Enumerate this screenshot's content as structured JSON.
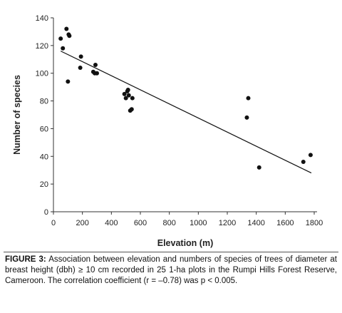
{
  "chart_data": {
    "type": "scatter",
    "title": "",
    "xlabel": "Elevation (m)",
    "ylabel": "Number of species",
    "xlim": [
      0,
      1800
    ],
    "ylim": [
      0,
      140
    ],
    "x_ticks": [
      0,
      200,
      400,
      600,
      800,
      1000,
      1200,
      1400,
      1600,
      1800
    ],
    "y_ticks": [
      0,
      20,
      40,
      60,
      80,
      100,
      120,
      140
    ],
    "grid": false,
    "legend": "none",
    "points": [
      {
        "x": 50,
        "y": 125
      },
      {
        "x": 65,
        "y": 118
      },
      {
        "x": 90,
        "y": 132
      },
      {
        "x": 105,
        "y": 128
      },
      {
        "x": 110,
        "y": 127
      },
      {
        "x": 100,
        "y": 94
      },
      {
        "x": 190,
        "y": 112
      },
      {
        "x": 185,
        "y": 104
      },
      {
        "x": 275,
        "y": 101
      },
      {
        "x": 285,
        "y": 100
      },
      {
        "x": 300,
        "y": 100
      },
      {
        "x": 290,
        "y": 106
      },
      {
        "x": 490,
        "y": 85
      },
      {
        "x": 500,
        "y": 82
      },
      {
        "x": 510,
        "y": 87
      },
      {
        "x": 515,
        "y": 88
      },
      {
        "x": 520,
        "y": 84
      },
      {
        "x": 545,
        "y": 82
      },
      {
        "x": 530,
        "y": 73
      },
      {
        "x": 540,
        "y": 74
      },
      {
        "x": 1335,
        "y": 68
      },
      {
        "x": 1345,
        "y": 82
      },
      {
        "x": 1420,
        "y": 32
      },
      {
        "x": 1725,
        "y": 36
      },
      {
        "x": 1775,
        "y": 41
      }
    ],
    "regression_line": {
      "x": [
        50,
        1780
      ],
      "y": [
        116,
        28
      ]
    },
    "marker_color": "#111111",
    "line_color": "#111111"
  },
  "caption": {
    "label": "FIGURE 3:",
    "text": " Association between elevation and numbers of species of trees of diameter at breast height (dbh) ≥ 10 cm recorded in 25 1-ha plots in the Rumpi Hills Forest Reserve, Cameroon. The correlation coefficient (r = –0.78) was p < 0.005."
  }
}
